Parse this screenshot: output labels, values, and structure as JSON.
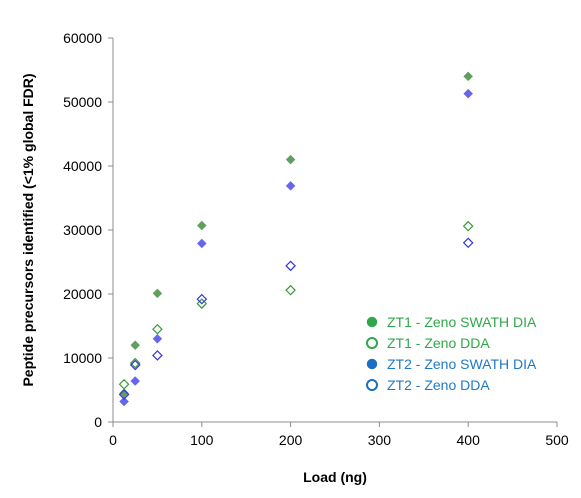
{
  "chart_data": {
    "type": "scatter",
    "xlabel": "Load (ng)",
    "ylabel": "Peptide precursors identified (<1% global FDR)",
    "xlim": [
      0,
      500
    ],
    "ylim": [
      0,
      60000
    ],
    "xticks": [
      "0",
      "100",
      "200",
      "300",
      "400",
      "500"
    ],
    "yticks": [
      "0",
      "10000",
      "20000",
      "30000",
      "40000",
      "50000",
      "60000"
    ],
    "grid": false,
    "legend_position": "bottom-right",
    "series": [
      {
        "name": "ZT1 - Zeno SWATH DIA",
        "color": "#5fa05f",
        "text_color": "#2fa84a",
        "legend_marker": "filled-circle",
        "marker": "filled-diamond",
        "points": [
          {
            "x": 12.5,
            "y": 4500
          },
          {
            "x": 25,
            "y": 12000
          },
          {
            "x": 50,
            "y": 20100
          },
          {
            "x": 100,
            "y": 30700
          },
          {
            "x": 200,
            "y": 41000
          },
          {
            "x": 400,
            "y": 54000
          }
        ]
      },
      {
        "name": "ZT1 - Zeno DDA",
        "color": "#3a9a3a",
        "text_color": "#2fa84a",
        "legend_marker": "open-circle",
        "marker": "open-diamond",
        "points": [
          {
            "x": 12.5,
            "y": 5900
          },
          {
            "x": 25,
            "y": 9200
          },
          {
            "x": 50,
            "y": 14500
          },
          {
            "x": 100,
            "y": 18500
          },
          {
            "x": 200,
            "y": 20600
          },
          {
            "x": 400,
            "y": 30600
          }
        ]
      },
      {
        "name": "ZT2 - Zeno SWATH DIA",
        "color": "#6565ee",
        "text_color": "#2079c7",
        "legend_marker": "filled-circle",
        "marker": "filled-diamond",
        "points": [
          {
            "x": 12.5,
            "y": 3200
          },
          {
            "x": 25,
            "y": 6400
          },
          {
            "x": 50,
            "y": 13000
          },
          {
            "x": 100,
            "y": 27900
          },
          {
            "x": 200,
            "y": 36900
          },
          {
            "x": 400,
            "y": 51300
          }
        ]
      },
      {
        "name": "ZT2 - Zeno DDA",
        "color": "#3434e0",
        "text_color": "#2079c7",
        "legend_marker": "open-circle",
        "marker": "open-diamond",
        "points": [
          {
            "x": 12.5,
            "y": 4300
          },
          {
            "x": 25,
            "y": 8900
          },
          {
            "x": 50,
            "y": 10400
          },
          {
            "x": 100,
            "y": 19200
          },
          {
            "x": 200,
            "y": 24400
          },
          {
            "x": 400,
            "y": 28000
          }
        ]
      }
    ],
    "legend_marker_colors": [
      "#2fa84a",
      "#2fa84a",
      "#1a6fc4",
      "#1a6fc4"
    ]
  }
}
